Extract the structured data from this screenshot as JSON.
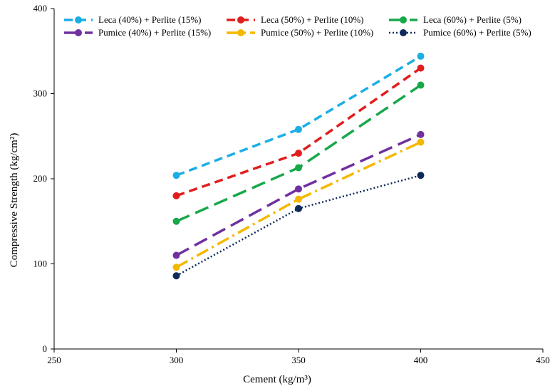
{
  "chart_data": {
    "type": "line",
    "title": "",
    "xlabel": "Cement (kg/m³)",
    "ylabel": "Compressive  Strength (kg/cm²)",
    "xlim": [
      250,
      450
    ],
    "ylim": [
      0,
      400
    ],
    "xticks": [
      250,
      300,
      350,
      400,
      450
    ],
    "yticks": [
      0,
      100,
      200,
      300,
      400
    ],
    "grid": false,
    "legend_position": "top",
    "series": [
      {
        "name": "Leca (40%) + Perlite (15%)",
        "color": "#1aaee5",
        "dash": "dash",
        "x": [
          300,
          350,
          400
        ],
        "y": [
          204,
          258,
          344
        ]
      },
      {
        "name": "Leca (50%) + Perlite (10%)",
        "color": "#e21d1d",
        "dash": "dash",
        "x": [
          300,
          350,
          400
        ],
        "y": [
          180,
          230,
          330
        ]
      },
      {
        "name": "Leca (60%) + Perlite (5%)",
        "color": "#17a84a",
        "dash": "longdash",
        "x": [
          300,
          350,
          400
        ],
        "y": [
          150,
          213,
          310
        ]
      },
      {
        "name": "Pumice (40%) + Perlite (15%)",
        "color": "#7030a0",
        "dash": "longdash",
        "x": [
          300,
          350,
          400
        ],
        "y": [
          110,
          188,
          252
        ]
      },
      {
        "name": "Pumice (50%) + Perlite (10%)",
        "color": "#f5b800",
        "dash": "dashdot",
        "x": [
          300,
          350,
          400
        ],
        "y": [
          96,
          176,
          243
        ]
      },
      {
        "name": "Pumice (60%) + Perlite (5%)",
        "color": "#0f2a5a",
        "dash": "dot",
        "x": [
          300,
          350,
          400
        ],
        "y": [
          86,
          165,
          204
        ]
      }
    ]
  }
}
